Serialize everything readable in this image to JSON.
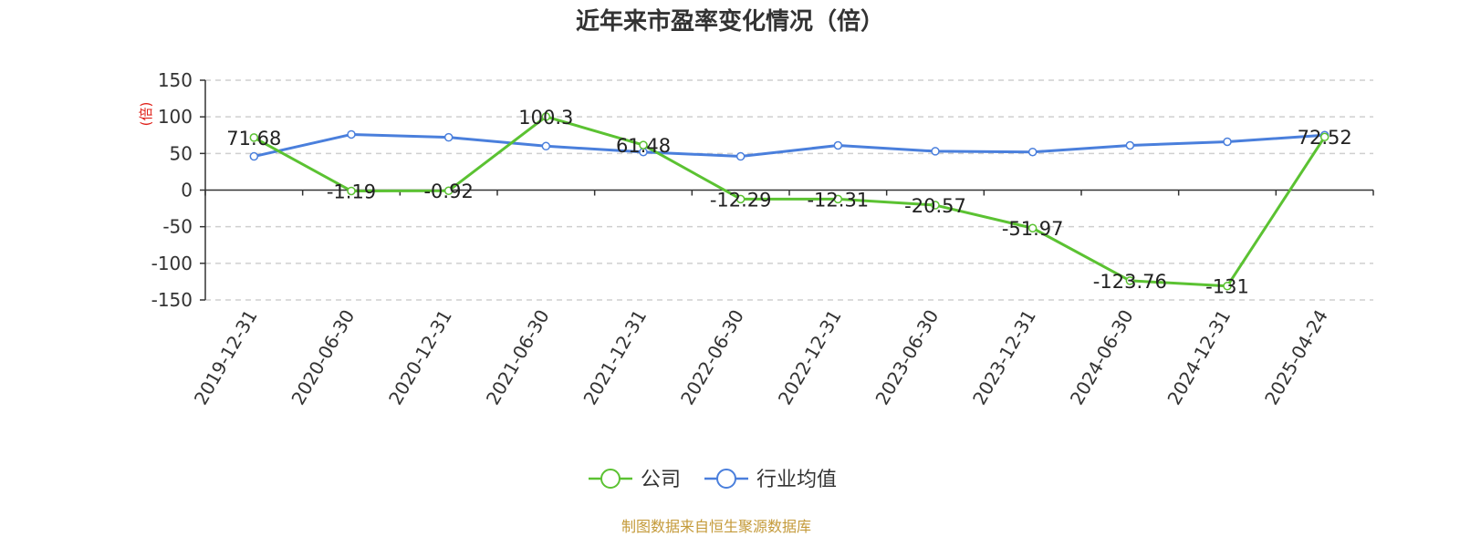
{
  "chart_data": {
    "type": "line",
    "title": "近年来市盈率变化情况（倍）",
    "ylabel": "(倍)",
    "xlabel": "",
    "ylim": [
      -150,
      150
    ],
    "yticks": [
      150,
      100,
      50,
      0,
      -50,
      -100,
      -150
    ],
    "categories": [
      "2019-12-31",
      "2020-06-30",
      "2020-12-31",
      "2021-06-30",
      "2021-12-31",
      "2022-06-30",
      "2022-12-31",
      "2023-06-30",
      "2023-12-31",
      "2024-06-30",
      "2024-12-31",
      "2025-04-24"
    ],
    "series": [
      {
        "name": "公司",
        "color": "#5bc232",
        "values": [
          71.68,
          -1.19,
          -0.92,
          100.3,
          61.48,
          -12.29,
          -12.31,
          -20.57,
          -51.97,
          -123.76,
          -131,
          72.52
        ],
        "labels": [
          "71.68",
          "-1.19",
          "-0.92",
          "100.3",
          "61.48",
          "-12.29",
          "-12.31",
          "-20.57",
          "-51.97",
          "-123.76",
          "-131",
          "72.52"
        ]
      },
      {
        "name": "行业均值",
        "color": "#4a7fdc",
        "values": [
          46,
          76,
          72,
          60,
          52,
          46,
          61,
          53,
          52,
          61,
          66,
          75
        ]
      }
    ],
    "grid": true,
    "gridStyle": "dashed",
    "legend_position": "bottom-center"
  },
  "source_text": "制图数据来自恒生聚源数据库"
}
